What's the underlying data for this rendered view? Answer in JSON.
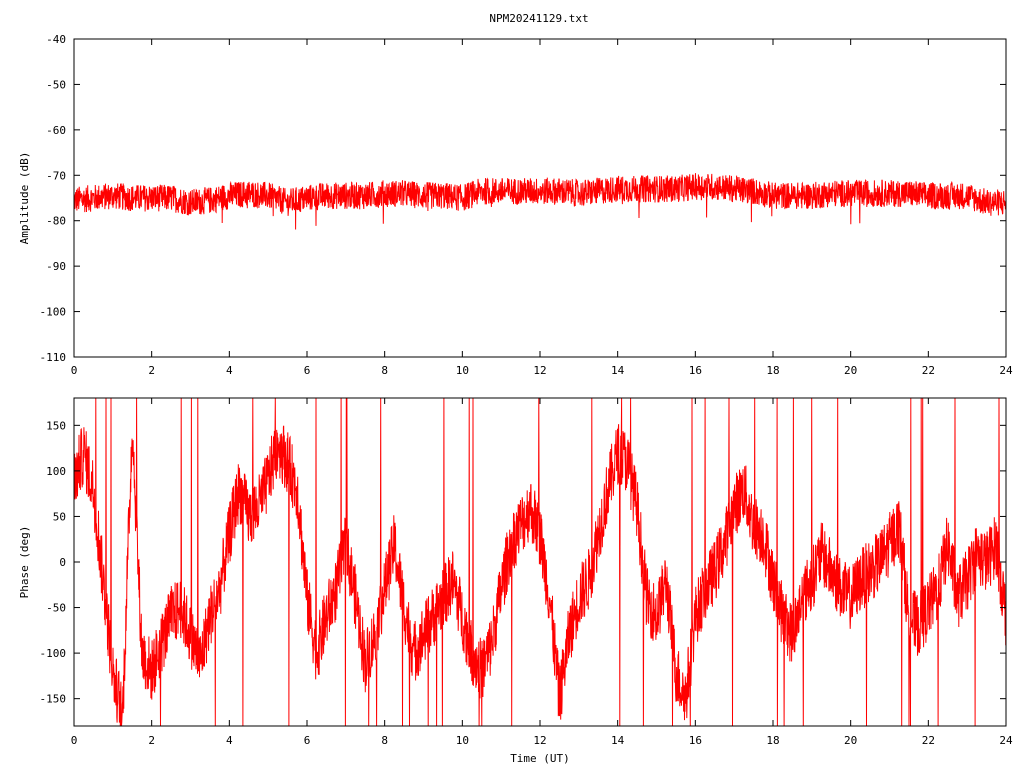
{
  "title": "NPM20241129.txt",
  "colors": {
    "series": "#ff0000",
    "axes": "#000000",
    "background": "#ffffff"
  },
  "chart_data": [
    {
      "type": "line",
      "xlabel": "",
      "ylabel": "Amplitude (dB)",
      "xlim": [
        0,
        24
      ],
      "ylim": [
        -110,
        -40
      ],
      "xticks": [
        "0",
        "2",
        "4",
        "6",
        "8",
        "10",
        "12",
        "14",
        "16",
        "18",
        "20",
        "22",
        "24"
      ],
      "yticks": [
        "-40",
        "-50",
        "-60",
        "-70",
        "-80",
        "-90",
        "-100",
        "-110"
      ],
      "grid": false,
      "series": [
        {
          "x": [
            0,
            0.5,
            1,
            1.5,
            2,
            2.5,
            3,
            3.5,
            4,
            4.5,
            5,
            5.5,
            6,
            6.5,
            7,
            7.5,
            8,
            8.5,
            9,
            9.5,
            10,
            10.5,
            11,
            11.5,
            12,
            12.5,
            13,
            13.5,
            14,
            14.5,
            15,
            15.5,
            16,
            16.5,
            17,
            17.5,
            18,
            18.5,
            19,
            19.5,
            20,
            20.5,
            21,
            21.5,
            22,
            22.5,
            23,
            23.5,
            24
          ],
          "y": [
            -75.5,
            -75,
            -74.5,
            -75,
            -75,
            -75,
            -76,
            -75.5,
            -74.5,
            -74,
            -74.5,
            -76,
            -75,
            -74.5,
            -74.5,
            -74.5,
            -74,
            -74,
            -74.5,
            -74.5,
            -75,
            -73.5,
            -73.5,
            -73.5,
            -73.5,
            -73.5,
            -74,
            -73.5,
            -73,
            -73,
            -73,
            -73,
            -72.5,
            -72.5,
            -73,
            -73.5,
            -74.5,
            -74.5,
            -74.5,
            -74,
            -74,
            -74,
            -74,
            -74,
            -74.5,
            -74.5,
            -74.5,
            -76,
            -76
          ]
        }
      ]
    },
    {
      "type": "line",
      "xlabel": "Time (UT)",
      "ylabel": "Phase (deg)",
      "xlim": [
        0,
        24
      ],
      "ylim": [
        -180,
        180
      ],
      "xticks": [
        "0",
        "2",
        "4",
        "6",
        "8",
        "10",
        "12",
        "14",
        "16",
        "18",
        "20",
        "22",
        "24"
      ],
      "yticks": [
        "150",
        "100",
        "50",
        "0",
        "-50",
        "-100",
        "-150"
      ],
      "grid": false,
      "series": [
        {
          "x": [
            0,
            0.25,
            0.5,
            0.75,
            1,
            1.25,
            1.5,
            1.75,
            2,
            2.25,
            2.5,
            2.75,
            3,
            3.25,
            3.5,
            3.75,
            4,
            4.25,
            4.5,
            4.75,
            5,
            5.25,
            5.5,
            5.75,
            6,
            6.25,
            6.5,
            6.75,
            7,
            7.25,
            7.5,
            7.75,
            8,
            8.25,
            8.5,
            8.75,
            9,
            9.25,
            9.5,
            9.75,
            10,
            10.25,
            10.5,
            10.75,
            11,
            11.25,
            11.5,
            11.75,
            12,
            12.25,
            12.5,
            12.75,
            13,
            13.25,
            13.5,
            13.75,
            14,
            14.25,
            14.5,
            14.75,
            15,
            15.25,
            15.5,
            15.75,
            16,
            16.25,
            16.5,
            16.75,
            17,
            17.25,
            17.5,
            17.75,
            18,
            18.25,
            18.5,
            18.75,
            19,
            19.25,
            19.5,
            19.75,
            20,
            20.25,
            20.5,
            20.75,
            21,
            21.25,
            21.5,
            21.75,
            22,
            22.25,
            22.5,
            22.75,
            23,
            23.25,
            23.5,
            23.75,
            24
          ],
          "y": [
            90,
            120,
            80,
            -20,
            -120,
            -170,
            150,
            -100,
            -120,
            -90,
            -60,
            -50,
            -80,
            -110,
            -60,
            -30,
            30,
            80,
            50,
            60,
            90,
            130,
            110,
            80,
            -40,
            -100,
            -60,
            -30,
            20,
            -40,
            -110,
            -80,
            -30,
            20,
            -50,
            -100,
            -80,
            -60,
            -40,
            -20,
            -60,
            -100,
            -120,
            -90,
            -30,
            20,
            40,
            60,
            30,
            -40,
            -150,
            -80,
            -40,
            -20,
            30,
            80,
            120,
            110,
            60,
            -40,
            -60,
            -20,
            -120,
            -150,
            -60,
            -30,
            -10,
            20,
            60,
            80,
            40,
            30,
            -20,
            -60,
            -80,
            -40,
            -20,
            10,
            -10,
            -30,
            -40,
            -20,
            -10,
            0,
            20,
            40,
            -60,
            -70,
            -50,
            -30,
            20,
            -40,
            -20,
            10,
            0,
            20,
            -60
          ]
        }
      ]
    }
  ]
}
